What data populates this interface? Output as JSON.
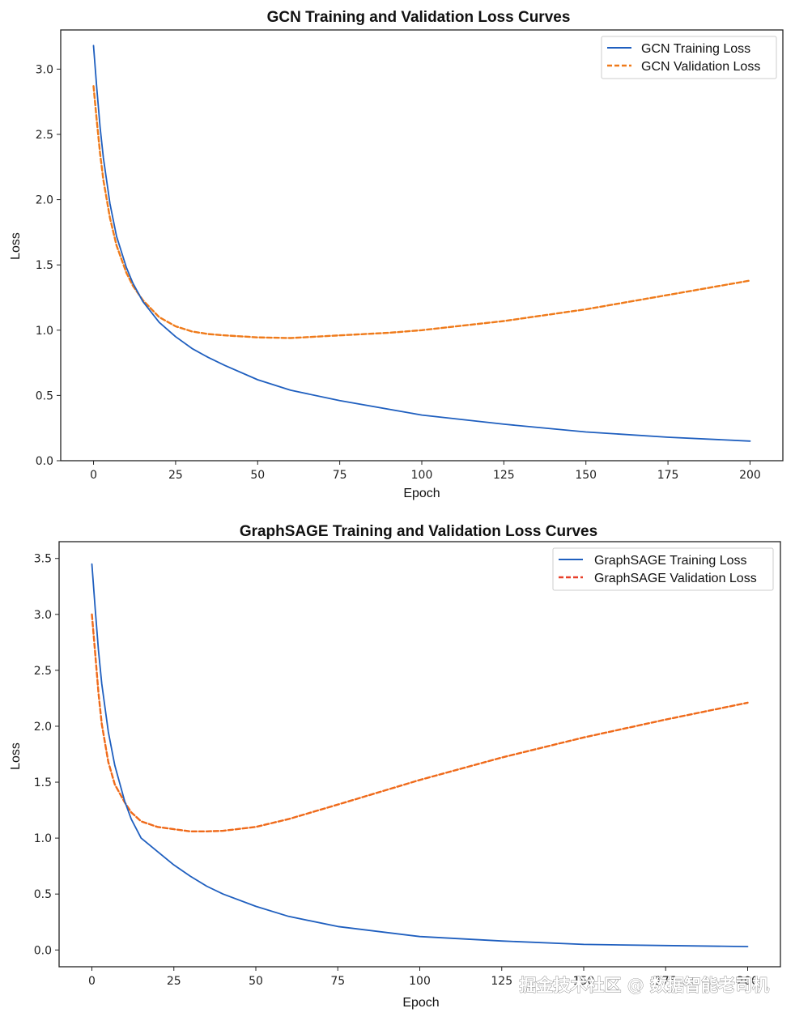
{
  "chart_data": [
    {
      "type": "line",
      "title": "GCN Training and Validation Loss Curves",
      "xlabel": "Epoch",
      "ylabel": "Loss",
      "xlim": [
        -10,
        210
      ],
      "ylim": [
        0,
        3.3
      ],
      "xticks": [
        0,
        25,
        50,
        75,
        100,
        125,
        150,
        175,
        200
      ],
      "yticks": [
        0.0,
        0.5,
        1.0,
        1.5,
        2.0,
        2.5,
        3.0
      ],
      "xtick_labels": [
        "0",
        "25",
        "50",
        "75",
        "100",
        "125",
        "150",
        "175",
        "200"
      ],
      "ytick_labels": [
        "0.0",
        "0.5",
        "1.0",
        "1.5",
        "2.0",
        "2.5",
        "3.0"
      ],
      "legend_position": "top-right",
      "series": [
        {
          "name": "GCN Training Loss",
          "style": "solid",
          "color": "#1f5fbf",
          "x": [
            0,
            1,
            2,
            3,
            5,
            7,
            10,
            12,
            15,
            20,
            25,
            30,
            35,
            40,
            50,
            60,
            75,
            100,
            125,
            150,
            175,
            200
          ],
          "y": [
            3.18,
            2.85,
            2.55,
            2.32,
            1.97,
            1.72,
            1.48,
            1.36,
            1.22,
            1.06,
            0.95,
            0.86,
            0.79,
            0.73,
            0.62,
            0.54,
            0.46,
            0.35,
            0.28,
            0.22,
            0.18,
            0.15
          ]
        },
        {
          "name": "GCN Validation Loss",
          "style": "dashed",
          "color": "#ef7a1a",
          "x": [
            0,
            1,
            2,
            3,
            5,
            7,
            10,
            12,
            15,
            20,
            25,
            30,
            35,
            40,
            50,
            60,
            75,
            90,
            100,
            125,
            150,
            175,
            200
          ],
          "y": [
            2.87,
            2.6,
            2.35,
            2.15,
            1.86,
            1.65,
            1.44,
            1.34,
            1.23,
            1.1,
            1.03,
            0.99,
            0.97,
            0.96,
            0.945,
            0.94,
            0.96,
            0.98,
            1.0,
            1.07,
            1.16,
            1.27,
            1.38
          ]
        }
      ]
    },
    {
      "type": "line",
      "title": "GraphSAGE Training and Validation Loss Curves",
      "xlabel": "Epoch",
      "ylabel": "Loss",
      "xlim": [
        -10,
        210
      ],
      "ylim": [
        -0.15,
        3.65
      ],
      "xticks": [
        0,
        25,
        50,
        75,
        100,
        125,
        150,
        175,
        200
      ],
      "yticks": [
        0.0,
        0.5,
        1.0,
        1.5,
        2.0,
        2.5,
        3.0,
        3.5
      ],
      "xtick_labels": [
        "0",
        "25",
        "50",
        "75",
        "100",
        "125",
        "150",
        "175",
        "200"
      ],
      "ytick_labels": [
        "0.0",
        "0.5",
        "1.0",
        "1.5",
        "2.0",
        "2.5",
        "3.0",
        "3.5"
      ],
      "legend_position": "top-right",
      "series": [
        {
          "name": "GraphSAGE Training Loss",
          "style": "solid",
          "color": "#1f5fbf",
          "x": [
            0,
            1,
            2,
            3,
            5,
            7,
            10,
            12,
            15,
            20,
            25,
            30,
            35,
            40,
            50,
            60,
            75,
            100,
            125,
            150,
            175,
            200
          ],
          "y": [
            3.45,
            3.05,
            2.68,
            2.38,
            1.95,
            1.65,
            1.33,
            1.17,
            1.0,
            0.88,
            0.76,
            0.66,
            0.57,
            0.5,
            0.39,
            0.3,
            0.21,
            0.12,
            0.08,
            0.05,
            0.04,
            0.03
          ]
        },
        {
          "name": "GraphSAGE Validation Loss",
          "style": "dashed",
          "color": "#ef6a1a",
          "x": [
            0,
            1,
            2,
            3,
            5,
            7,
            10,
            12,
            15,
            20,
            25,
            30,
            35,
            40,
            50,
            60,
            75,
            100,
            125,
            150,
            175,
            200
          ],
          "y": [
            3.0,
            2.65,
            2.3,
            2.02,
            1.68,
            1.48,
            1.32,
            1.23,
            1.15,
            1.1,
            1.08,
            1.06,
            1.06,
            1.065,
            1.1,
            1.17,
            1.3,
            1.52,
            1.72,
            1.9,
            2.06,
            2.21
          ]
        }
      ]
    }
  ],
  "watermark": "掘金技术社区 @ 数据智能老司机"
}
